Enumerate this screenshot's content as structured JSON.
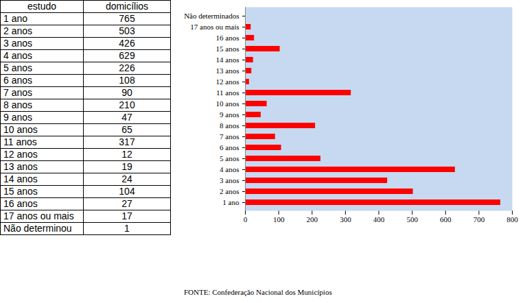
{
  "table": {
    "columns": [
      "estudo",
      "domicílios"
    ],
    "rows": [
      [
        "1 ano",
        "765"
      ],
      [
        "2 anos",
        "503"
      ],
      [
        "3 anos",
        "426"
      ],
      [
        "4 anos",
        "629"
      ],
      [
        "5 anos",
        "226"
      ],
      [
        "6 anos",
        "108"
      ],
      [
        "7 anos",
        "90"
      ],
      [
        "8 anos",
        "210"
      ],
      [
        "9 anos",
        "47"
      ],
      [
        "10 anos",
        "65"
      ],
      [
        "11 anos",
        "317"
      ],
      [
        "12 anos",
        "12"
      ],
      [
        "13 anos",
        "19"
      ],
      [
        "14 anos",
        "24"
      ],
      [
        "15 anos",
        "104"
      ],
      [
        "16 anos",
        "27"
      ],
      [
        "17 anos ou mais",
        "17"
      ],
      [
        "Não determinou",
        "1"
      ]
    ]
  },
  "chart_data": {
    "type": "bar",
    "orientation": "horizontal",
    "categories": [
      "1 ano",
      "2 anos",
      "3 anos",
      "4 anos",
      "5 anos",
      "6 anos",
      "7 anos",
      "8 anos",
      "9 anos",
      "10 anos",
      "11 anos",
      "12 anos",
      "13 anos",
      "14 anos",
      "15 anos",
      "16 anos",
      "17 anos ou mais",
      "Não determinados"
    ],
    "values": [
      765,
      503,
      426,
      629,
      226,
      108,
      90,
      210,
      47,
      65,
      317,
      12,
      19,
      24,
      104,
      27,
      17,
      1
    ],
    "color": "#ff0000",
    "xlim": [
      0,
      800
    ],
    "xticks": [
      0,
      100,
      200,
      300,
      400,
      500,
      600,
      700,
      800
    ],
    "grid": false
  },
  "source": "FONTE: Confederação Nacional dos Municípios"
}
